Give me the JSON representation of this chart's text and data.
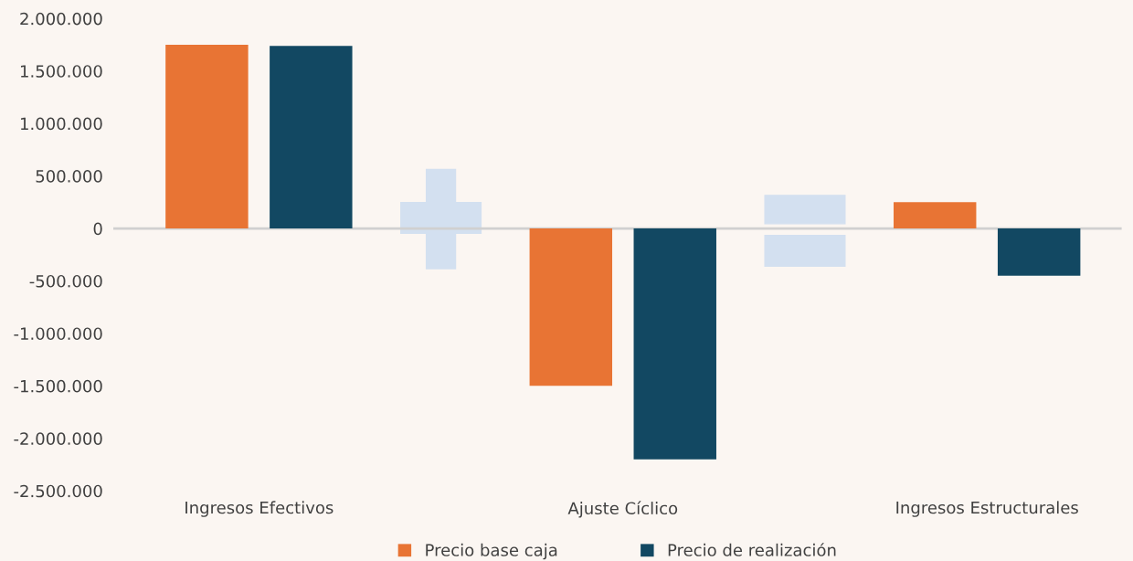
{
  "chart_data": {
    "type": "bar",
    "categories": [
      "Ingresos Efectivos",
      "Ajuste Cíclico",
      "Ingresos Estructurales"
    ],
    "series": [
      {
        "name": "Precio base caja",
        "color": "#e87434",
        "values": [
          1750000,
          -1500000,
          250000
        ]
      },
      {
        "name": "Precio de realización",
        "color": "#124862",
        "values": [
          1740000,
          -2200000,
          -450000
        ]
      }
    ],
    "ylim": [
      -2500000,
      2000000
    ],
    "yticks": [
      {
        "value": 2000000,
        "label": "2.000.000"
      },
      {
        "value": 1500000,
        "label": "1.500.000"
      },
      {
        "value": 1000000,
        "label": "1.000.000"
      },
      {
        "value": 500000,
        "label": "500.000"
      },
      {
        "value": 0,
        "label": "0"
      },
      {
        "value": -500000,
        "label": "-500.000"
      },
      {
        "value": -1000000,
        "label": "-1.000.000"
      },
      {
        "value": -1500000,
        "label": "-1.500.000"
      },
      {
        "value": -2000000,
        "label": "-2.000.000"
      },
      {
        "value": -2500000,
        "label": "-2.500.000"
      }
    ],
    "ref_lines": [
      {
        "axis": "y",
        "value": 0,
        "color": "#d0d0d0"
      }
    ],
    "legend": "bottom",
    "grid": false
  }
}
